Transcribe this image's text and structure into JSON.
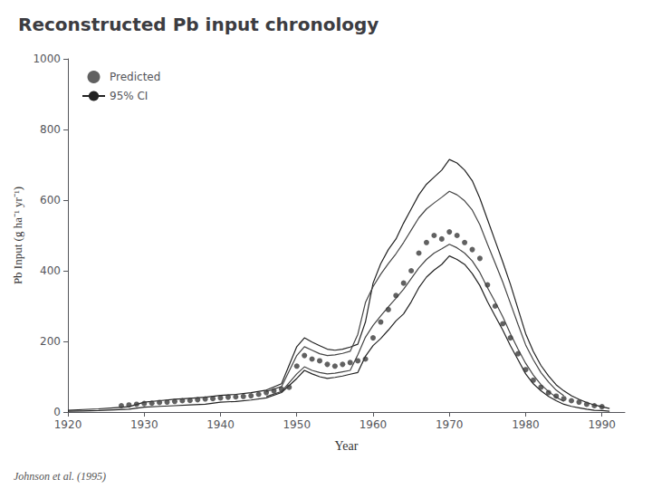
{
  "chart_data": {
    "type": "line",
    "title": "Reconstructed Pb input chronology",
    "xlabel": "Year",
    "ylabel": "Pb Input (g ha⁻¹ yr⁻¹)",
    "annotations": [
      "Johnson et al. (1995)"
    ],
    "xlim": [
      1920,
      1993
    ],
    "ylim": [
      0,
      1000
    ],
    "xticks": [
      1920,
      1930,
      1940,
      1950,
      1960,
      1970,
      1980,
      1990
    ],
    "yticks": [
      0,
      200,
      400,
      600,
      800,
      1000
    ],
    "grid": false,
    "legend": "upper left",
    "series": [
      {
        "name": "Predicted",
        "type": "scatter",
        "color": "#3a3a3a",
        "marker": "circle",
        "x": [
          1927,
          1928,
          1929,
          1930,
          1931,
          1932,
          1933,
          1934,
          1935,
          1936,
          1937,
          1938,
          1939,
          1940,
          1941,
          1942,
          1943,
          1944,
          1945,
          1946,
          1947,
          1948,
          1949,
          1950,
          1951,
          1952,
          1953,
          1954,
          1955,
          1956,
          1957,
          1958,
          1959,
          1960,
          1961,
          1962,
          1963,
          1964,
          1965,
          1966,
          1967,
          1968,
          1969,
          1970,
          1971,
          1972,
          1973,
          1974,
          1975,
          1976,
          1977,
          1978,
          1979,
          1980,
          1981,
          1982,
          1983,
          1984,
          1985,
          1986,
          1987,
          1988,
          1989,
          1990
        ],
        "values": [
          18,
          20,
          22,
          24,
          25,
          27,
          28,
          30,
          32,
          33,
          35,
          37,
          38,
          40,
          42,
          43,
          44,
          46,
          50,
          55,
          60,
          65,
          70,
          130,
          160,
          150,
          145,
          135,
          130,
          135,
          140,
          145,
          150,
          210,
          255,
          290,
          330,
          365,
          400,
          450,
          480,
          500,
          490,
          510,
          500,
          480,
          460,
          435,
          360,
          300,
          250,
          210,
          165,
          120,
          90,
          70,
          55,
          45,
          38,
          32,
          28,
          22,
          18,
          15
        ]
      },
      {
        "name": "95% CI",
        "type": "line",
        "color": "#222222",
        "x": [
          1920,
          1922,
          1924,
          1926,
          1928,
          1930,
          1932,
          1934,
          1936,
          1938,
          1940,
          1942,
          1944,
          1946,
          1948,
          1950,
          1951,
          1952,
          1953,
          1954,
          1955,
          1956,
          1957,
          1958,
          1959,
          1960,
          1961,
          1962,
          1963,
          1964,
          1965,
          1966,
          1967,
          1968,
          1969,
          1970,
          1971,
          1972,
          1973,
          1974,
          1975,
          1976,
          1977,
          1978,
          1979,
          1980,
          1981,
          1982,
          1983,
          1984,
          1985,
          1986,
          1987,
          1988,
          1989,
          1990,
          1991
        ],
        "values": [
          5,
          7,
          9,
          12,
          15,
          28,
          32,
          36,
          39,
          42,
          47,
          50,
          55,
          62,
          80,
          185,
          210,
          198,
          188,
          178,
          175,
          178,
          184,
          192,
          255,
          365,
          420,
          460,
          490,
          535,
          575,
          615,
          645,
          665,
          685,
          715,
          705,
          685,
          655,
          605,
          545,
          485,
          425,
          362,
          292,
          222,
          172,
          132,
          102,
          77,
          60,
          46,
          36,
          27,
          20,
          15,
          10
        ]
      },
      {
        "name": "95% CI",
        "type": "line",
        "color": "#222222",
        "x": [
          1920,
          1922,
          1924,
          1926,
          1928,
          1930,
          1932,
          1934,
          1936,
          1938,
          1940,
          1942,
          1944,
          1946,
          1948,
          1950,
          1951,
          1952,
          1953,
          1954,
          1955,
          1956,
          1957,
          1958,
          1959,
          1960,
          1961,
          1962,
          1963,
          1964,
          1965,
          1966,
          1967,
          1968,
          1969,
          1970,
          1971,
          1972,
          1973,
          1974,
          1975,
          1976,
          1977,
          1978,
          1979,
          1980,
          1981,
          1982,
          1983,
          1984,
          1985,
          1986,
          1987,
          1988,
          1989,
          1990,
          1991
        ],
        "values": [
          2,
          3,
          4,
          6,
          8,
          14,
          16,
          18,
          20,
          22,
          28,
          30,
          34,
          40,
          55,
          95,
          118,
          108,
          100,
          95,
          98,
          102,
          107,
          112,
          158,
          188,
          208,
          232,
          258,
          278,
          312,
          352,
          382,
          402,
          418,
          442,
          432,
          418,
          392,
          358,
          312,
          272,
          232,
          188,
          148,
          108,
          80,
          60,
          44,
          32,
          22,
          16,
          12,
          8,
          5,
          4,
          2
        ]
      },
      {
        "name": "95% CI",
        "type": "line",
        "color": "#444444",
        "x": [
          1946,
          1948,
          1950,
          1951,
          1952,
          1953,
          1954,
          1955,
          1956,
          1957,
          1958,
          1959,
          1960,
          1961,
          1962,
          1963,
          1964,
          1965,
          1966,
          1967,
          1968,
          1969,
          1970,
          1971,
          1972,
          1973,
          1974,
          1975,
          1976,
          1977,
          1978,
          1979,
          1980,
          1981,
          1982,
          1983,
          1984,
          1985
        ],
        "values": [
          58,
          72,
          160,
          185,
          175,
          165,
          160,
          162,
          166,
          172,
          220,
          310,
          355,
          390,
          420,
          448,
          480,
          515,
          550,
          575,
          592,
          608,
          625,
          615,
          598,
          572,
          530,
          475,
          422,
          368,
          308,
          248,
          190,
          148,
          112,
          85,
          62,
          46
        ]
      },
      {
        "name": "95% CI",
        "type": "line",
        "color": "#444444",
        "x": [
          1946,
          1948,
          1950,
          1951,
          1952,
          1953,
          1954,
          1955,
          1956,
          1957,
          1958,
          1959,
          1960,
          1961,
          1962,
          1963,
          1964,
          1965,
          1966,
          1967,
          1968,
          1969,
          1970,
          1971,
          1972,
          1973,
          1974,
          1975,
          1976,
          1977,
          1978,
          1979,
          1980,
          1981,
          1982,
          1983,
          1984,
          1985
        ],
        "values": [
          44,
          58,
          108,
          128,
          118,
          112,
          108,
          110,
          114,
          118,
          162,
          212,
          245,
          272,
          298,
          322,
          348,
          378,
          408,
          432,
          450,
          462,
          475,
          465,
          450,
          428,
          395,
          352,
          312,
          270,
          222,
          178,
          138,
          105,
          78,
          58,
          42,
          30
        ]
      }
    ]
  }
}
